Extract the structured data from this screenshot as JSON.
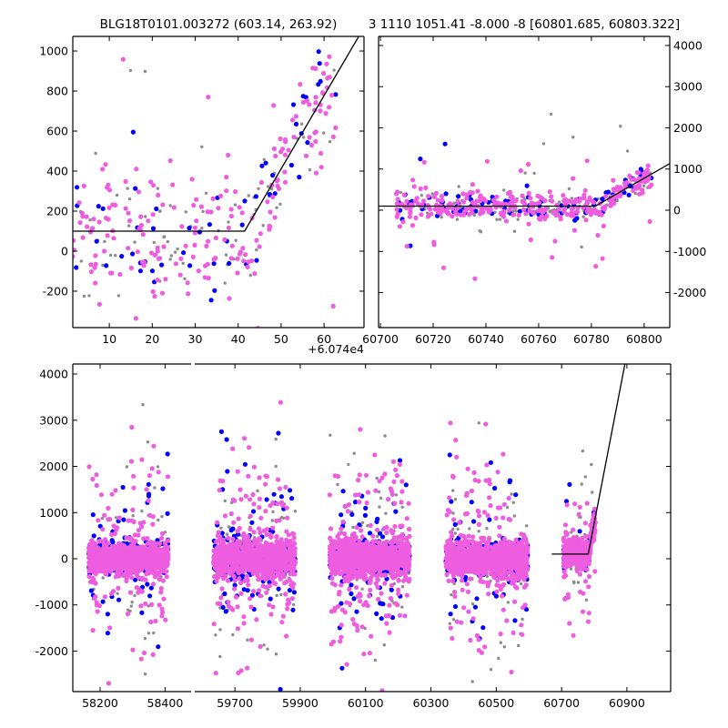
{
  "chart_data": [
    {
      "id": "top-left",
      "type": "scatter",
      "title": "BLG18T0101.003272 (603.14, 263.92)",
      "x_offset": 60740,
      "x_offset_label": "+6.074e4",
      "xlim": [
        1.5,
        69.3
      ],
      "ylim": [
        -382,
        1073
      ],
      "xticks": [
        10,
        20,
        30,
        40,
        50,
        60
      ],
      "yticks": [
        -200,
        0,
        200,
        400,
        600,
        800,
        1000
      ],
      "ytick_side": "left",
      "grid": false
    },
    {
      "id": "top-right",
      "type": "scatter",
      "title": "3 1110 1051.41 -8.000 -8 [60801.685, 60803.322]",
      "xlim": [
        60699.3,
        60809.7
      ],
      "ylim": [
        -2850,
        4220
      ],
      "xticks": [
        60700,
        60720,
        60740,
        60760,
        60780,
        60800
      ],
      "yticks": [
        -2000,
        -1000,
        0,
        1000,
        2000,
        3000,
        4000
      ],
      "ytick_side": "right",
      "grid": false
    },
    {
      "id": "bottom",
      "type": "scatter",
      "title": "",
      "broken_x_axis": true,
      "xlim_left": [
        58116,
        58480
      ],
      "xlim_right": [
        59577,
        61034
      ],
      "ylim": [
        -2877,
        4217
      ],
      "xticks_left": [
        58200,
        58400
      ],
      "xticks_right": [
        59700,
        59900,
        60100,
        60300,
        60500,
        60700,
        60900
      ],
      "yticks": [
        -2000,
        -1000,
        0,
        1000,
        2000,
        3000,
        4000
      ],
      "ytick_side": "left",
      "grid": false
    }
  ],
  "series": [
    {
      "name": "blue",
      "color": "#0000ff",
      "radius": 2.6
    },
    {
      "name": "gray",
      "color": "#8c8c8c",
      "radius": 1.7
    },
    {
      "name": "pink",
      "color": "#ee5ce0",
      "radius": 2.6
    }
  ],
  "seasons": [
    {
      "range": [
        58165,
        58410
      ],
      "counts": [
        260,
        260,
        900
      ],
      "sigma": 170,
      "outlier_frac": 0.14,
      "outlier_sigma": 1100
    },
    {
      "range": [
        59635,
        59885
      ],
      "counts": [
        300,
        300,
        1000
      ],
      "sigma": 190,
      "outlier_frac": 0.16,
      "outlier_sigma": 1100
    },
    {
      "range": [
        59990,
        60235
      ],
      "counts": [
        300,
        300,
        1000
      ],
      "sigma": 200,
      "outlier_frac": 0.17,
      "outlier_sigma": 1100
    },
    {
      "range": [
        60346,
        60597
      ],
      "counts": [
        300,
        300,
        1000
      ],
      "sigma": 190,
      "outlier_frac": 0.16,
      "outlier_sigma": 1100
    },
    {
      "range": [
        60706,
        60803
      ],
      "counts": [
        90,
        120,
        330
      ],
      "sigma": 160,
      "outlier_frac": 0.12,
      "outlier_sigma": 900,
      "follows_model": true
    }
  ],
  "model": {
    "baseline": 100,
    "t0": 60781.5,
    "slope_per_day": 36.6,
    "start": 60670,
    "color": "#000000"
  }
}
